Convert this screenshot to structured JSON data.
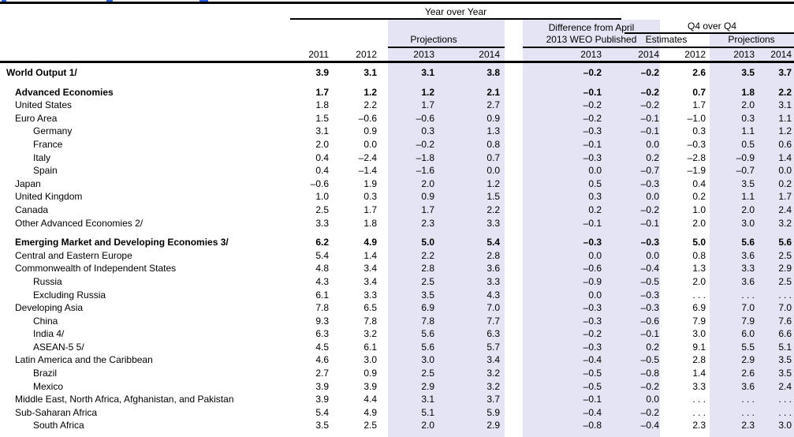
{
  "colors": {
    "highlight": "#e4e4f4",
    "rule": "#000000",
    "artifact_blue": "#2b5fd9"
  },
  "header": {
    "year_over_year": "Year over Year",
    "projections_yoy": "Projections",
    "difference_line1": "Difference from April",
    "difference_line2": "2013 WEO Published",
    "q4_over_q4": "Q4 over Q4",
    "estimates": "Estimates",
    "projections_q4": "Projections",
    "years": [
      "2011",
      "2012",
      "2013",
      "2014",
      "2013",
      "2014",
      "2012",
      "2013",
      "2014"
    ]
  },
  "rows": [
    {
      "label": "World Output 1/",
      "indent": 0,
      "bold": true,
      "group_start": false,
      "values": [
        "3.9",
        "3.1",
        "3.1",
        "3.8",
        "–0.2",
        "–0.2",
        "2.6",
        "3.5",
        "3.7"
      ]
    },
    {
      "label": "Advanced Economies",
      "indent": 1,
      "bold": true,
      "group_start": true,
      "values": [
        "1.7",
        "1.2",
        "1.2",
        "2.1",
        "–0.1",
        "–0.2",
        "0.7",
        "1.8",
        "2.2"
      ]
    },
    {
      "label": "United States",
      "indent": 1,
      "bold": false,
      "group_start": false,
      "values": [
        "1.8",
        "2.2",
        "1.7",
        "2.7",
        "–0.2",
        "–0.2",
        "1.7",
        "2.0",
        "3.1"
      ]
    },
    {
      "label": "Euro Area",
      "indent": 1,
      "bold": false,
      "group_start": false,
      "values": [
        "1.5",
        "–0.6",
        "–0.6",
        "0.9",
        "–0.2",
        "–0.1",
        "–1.0",
        "0.3",
        "1.1"
      ]
    },
    {
      "label": "Germany",
      "indent": 2,
      "bold": false,
      "group_start": false,
      "values": [
        "3.1",
        "0.9",
        "0.3",
        "1.3",
        "–0.3",
        "–0.1",
        "0.3",
        "1.1",
        "1.2"
      ]
    },
    {
      "label": "France",
      "indent": 2,
      "bold": false,
      "group_start": false,
      "values": [
        "2.0",
        "0.0",
        "–0.2",
        "0.8",
        "–0.1",
        "0.0",
        "–0.3",
        "0.5",
        "0.6"
      ]
    },
    {
      "label": "Italy",
      "indent": 2,
      "bold": false,
      "group_start": false,
      "values": [
        "0.4",
        "–2.4",
        "–1.8",
        "0.7",
        "–0.3",
        "0.2",
        "–2.8",
        "–0.9",
        "1.4"
      ]
    },
    {
      "label": "Spain",
      "indent": 2,
      "bold": false,
      "group_start": false,
      "values": [
        "0.4",
        "–1.4",
        "–1.6",
        "0.0",
        "0.0",
        "–0.7",
        "–1.9",
        "–0.7",
        "0.0"
      ]
    },
    {
      "label": "Japan",
      "indent": 1,
      "bold": false,
      "group_start": false,
      "values": [
        "–0.6",
        "1.9",
        "2.0",
        "1.2",
        "0.5",
        "–0.3",
        "0.4",
        "3.5",
        "0.2"
      ]
    },
    {
      "label": "United Kingdom",
      "indent": 1,
      "bold": false,
      "group_start": false,
      "values": [
        "1.0",
        "0.3",
        "0.9",
        "1.5",
        "0.3",
        "0.0",
        "0.2",
        "1.1",
        "1.7"
      ]
    },
    {
      "label": "Canada",
      "indent": 1,
      "bold": false,
      "group_start": false,
      "values": [
        "2.5",
        "1.7",
        "1.7",
        "2.2",
        "0.2",
        "–0.2",
        "1.0",
        "2.0",
        "2.4"
      ]
    },
    {
      "label": "Other Advanced Economies 2/",
      "indent": 1,
      "bold": false,
      "group_start": false,
      "values": [
        "3.3",
        "1.8",
        "2.3",
        "3.3",
        "–0.1",
        "–0.1",
        "2.0",
        "3.0",
        "3.2"
      ]
    },
    {
      "label": "Emerging Market and Developing Economies 3/",
      "indent": 1,
      "bold": true,
      "group_start": true,
      "values": [
        "6.2",
        "4.9",
        "5.0",
        "5.4",
        "–0.3",
        "–0.3",
        "5.0",
        "5.6",
        "5.6"
      ]
    },
    {
      "label": "Central and Eastern Europe",
      "indent": 1,
      "bold": false,
      "group_start": false,
      "values": [
        "5.4",
        "1.4",
        "2.2",
        "2.8",
        "0.0",
        "0.0",
        "0.8",
        "3.6",
        "2.5"
      ]
    },
    {
      "label": "Commonwealth of Independent States",
      "indent": 1,
      "bold": false,
      "group_start": false,
      "values": [
        "4.8",
        "3.4",
        "2.8",
        "3.6",
        "–0.6",
        "–0.4",
        "1.3",
        "3.3",
        "2.9"
      ]
    },
    {
      "label": "Russia",
      "indent": 2,
      "bold": false,
      "group_start": false,
      "values": [
        "4.3",
        "3.4",
        "2.5",
        "3.3",
        "–0.9",
        "–0.5",
        "2.0",
        "3.6",
        "2.5"
      ]
    },
    {
      "label": "Excluding Russia",
      "indent": 2,
      "bold": false,
      "group_start": false,
      "values": [
        "6.1",
        "3.3",
        "3.5",
        "4.3",
        "0.0",
        "–0.3",
        ". . .",
        ". . .",
        ". . ."
      ]
    },
    {
      "label": "Developing Asia",
      "indent": 1,
      "bold": false,
      "group_start": false,
      "values": [
        "7.8",
        "6.5",
        "6.9",
        "7.0",
        "–0.3",
        "–0.3",
        "6.9",
        "7.0",
        "7.0"
      ]
    },
    {
      "label": "China",
      "indent": 2,
      "bold": false,
      "group_start": false,
      "values": [
        "9.3",
        "7.8",
        "7.8",
        "7.7",
        "–0.3",
        "–0.6",
        "7.9",
        "7.9",
        "7.6"
      ]
    },
    {
      "label": "India 4/",
      "indent": 2,
      "bold": false,
      "group_start": false,
      "values": [
        "6.3",
        "3.2",
        "5.6",
        "6.3",
        "–0.2",
        "–0.1",
        "3.0",
        "6.0",
        "6.6"
      ]
    },
    {
      "label": "ASEAN-5 5/",
      "indent": 2,
      "bold": false,
      "group_start": false,
      "values": [
        "4.5",
        "6.1",
        "5.6",
        "5.7",
        "–0.3",
        "0.2",
        "9.1",
        "5.5",
        "5.1"
      ]
    },
    {
      "label": "Latin America and the Caribbean",
      "indent": 1,
      "bold": false,
      "group_start": false,
      "values": [
        "4.6",
        "3.0",
        "3.0",
        "3.4",
        "–0.4",
        "–0.5",
        "2.8",
        "2.9",
        "3.5"
      ]
    },
    {
      "label": "Brazil",
      "indent": 2,
      "bold": false,
      "group_start": false,
      "values": [
        "2.7",
        "0.9",
        "2.5",
        "3.2",
        "–0.5",
        "–0.8",
        "1.4",
        "2.6",
        "3.5"
      ]
    },
    {
      "label": "Mexico",
      "indent": 2,
      "bold": false,
      "group_start": false,
      "values": [
        "3.9",
        "3.9",
        "2.9",
        "3.2",
        "–0.5",
        "–0.2",
        "3.3",
        "3.6",
        "2.4"
      ]
    },
    {
      "label": "Middle East, North Africa, Afghanistan, and Pakistan",
      "indent": 1,
      "bold": false,
      "group_start": false,
      "values": [
        "3.9",
        "4.4",
        "3.1",
        "3.7",
        "–0.1",
        "0.0",
        ". . .",
        ". . .",
        ". . ."
      ]
    },
    {
      "label": "Sub-Saharan Africa",
      "indent": 1,
      "bold": false,
      "group_start": false,
      "values": [
        "5.4",
        "4.9",
        "5.1",
        "5.9",
        "–0.4",
        "–0.2",
        ". . .",
        ". . .",
        ". . ."
      ]
    },
    {
      "label": "South Africa",
      "indent": 2,
      "bold": false,
      "group_start": false,
      "values": [
        "3.5",
        "2.5",
        "2.0",
        "2.9",
        "–0.8",
        "–0.4",
        "2.3",
        "2.3",
        "3.0"
      ]
    }
  ]
}
